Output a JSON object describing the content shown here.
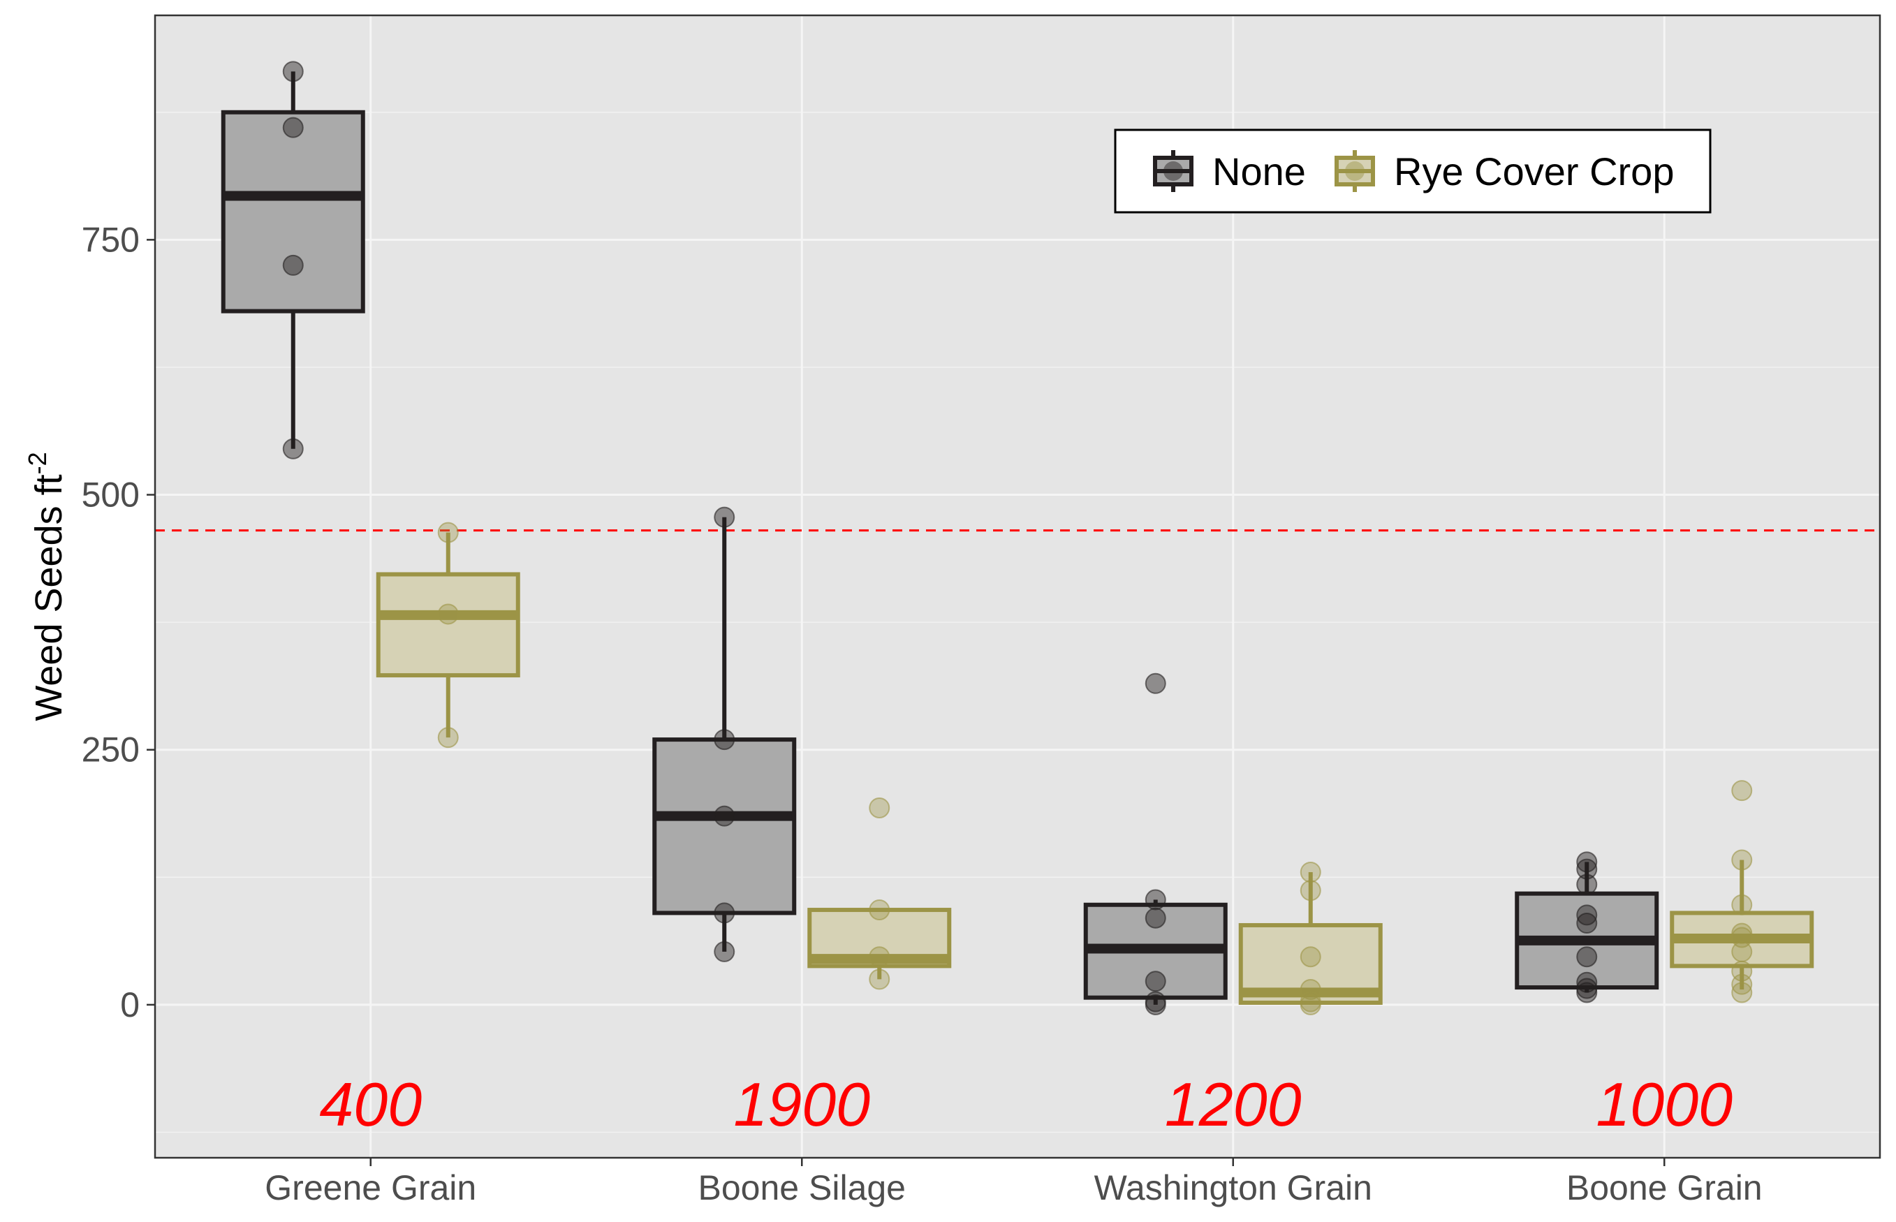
{
  "chart_data": {
    "type": "box",
    "xlabel": "",
    "ylabel": {
      "main": "Weed Seeds ft",
      "superscript": "-2"
    },
    "ylim": [
      -150,
      970
    ],
    "yticks": [
      0,
      250,
      500,
      750
    ],
    "grid": true,
    "legend_position": "top-right",
    "categories": [
      "Greene Grain",
      "Boone Silage",
      "Washington Grain",
      "Boone Grain"
    ],
    "reference_line": {
      "y": 465,
      "color": "#ff0000",
      "style": "dashed"
    },
    "annotations": [
      "400",
      "1900",
      "1200",
      "1000"
    ],
    "series": [
      {
        "name": "None",
        "color": "#231f20",
        "fill": "#aaaaaa",
        "boxes": [
          {
            "q1": 680,
            "median": 793,
            "q3": 875,
            "whisker_low": 545,
            "whisker_high": 915,
            "points": [
              915,
              860,
              725,
              545
            ]
          },
          {
            "q1": 90,
            "median": 185,
            "q3": 260,
            "whisker_low": 52,
            "whisker_high": 478,
            "points": [
              478,
              260,
              185,
              90,
              52
            ]
          },
          {
            "q1": 7,
            "median": 55,
            "q3": 98,
            "whisker_low": 0,
            "whisker_high": 103,
            "points": [
              315,
              103,
              85,
              23,
              3,
              0
            ]
          },
          {
            "q1": 17,
            "median": 63,
            "q3": 109,
            "whisker_low": 12,
            "whisker_high": 140,
            "points": [
              140,
              133,
              118,
              88,
              80,
              47,
              22,
              16,
              12
            ]
          }
        ]
      },
      {
        "name": "Rye Cover Crop",
        "color": "#9c9446",
        "fill": "#d6d2b5",
        "boxes": [
          {
            "q1": 323,
            "median": 382,
            "q3": 422,
            "whisker_low": 262,
            "whisker_high": 463,
            "points": [
              463,
              383,
              262
            ]
          },
          {
            "q1": 38,
            "median": 45,
            "q3": 93,
            "whisker_low": 25,
            "whisker_high": 93,
            "points": [
              193,
              93,
              47,
              25
            ]
          },
          {
            "q1": 2,
            "median": 12,
            "q3": 78,
            "whisker_low": 0,
            "whisker_high": 130,
            "points": [
              130,
              112,
              47,
              15,
              3,
              0
            ]
          },
          {
            "q1": 38,
            "median": 65,
            "q3": 90,
            "whisker_low": 15,
            "whisker_high": 142,
            "points": [
              210,
              142,
              98,
              70,
              66,
              52,
              33,
              20,
              12
            ]
          }
        ]
      }
    ]
  }
}
